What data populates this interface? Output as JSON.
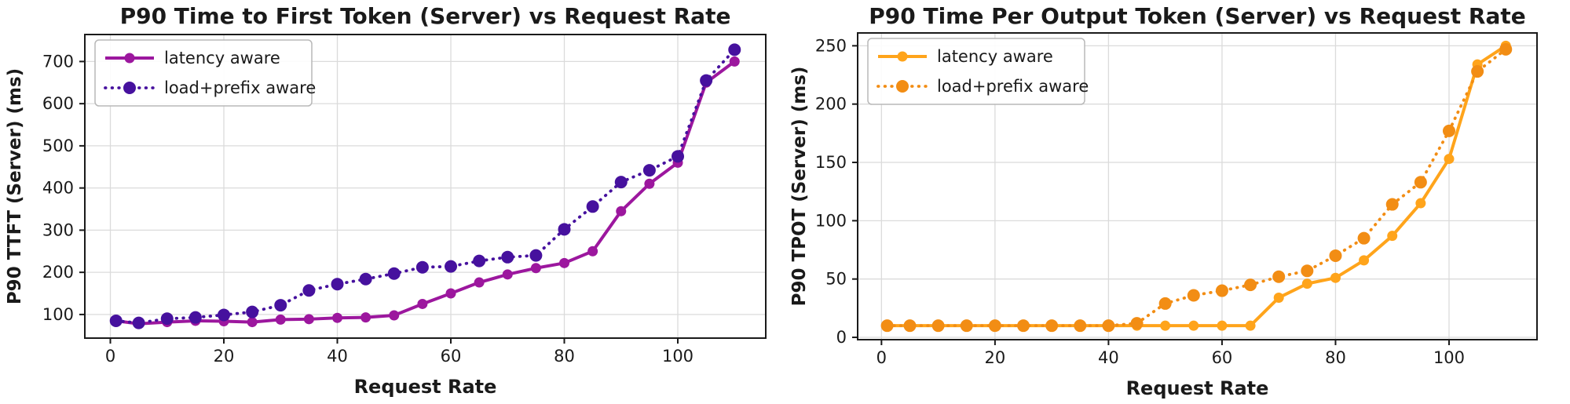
{
  "page": {
    "background": "#ffffff"
  },
  "chart_data": [
    {
      "type": "line",
      "title": "P90 Time to First Token (Server) vs Request Rate",
      "xlabel": "Request Rate",
      "ylabel": "P90 TTFT (Server) (ms)",
      "xticks": [
        0,
        20,
        40,
        60,
        80,
        100
      ],
      "yticks": [
        100,
        200,
        300,
        400,
        500,
        600,
        700
      ],
      "xlim": [
        -4.5,
        115.5
      ],
      "ylim": [
        44,
        764
      ],
      "grid": true,
      "legend_position": "upper left",
      "x": [
        1,
        5,
        10,
        15,
        20,
        25,
        30,
        35,
        40,
        45,
        50,
        55,
        60,
        65,
        70,
        75,
        80,
        85,
        90,
        95,
        100,
        105,
        110
      ],
      "series": [
        {
          "name": "latency aware",
          "style": "solid",
          "color": "#9C179E",
          "marker": "circle",
          "values": [
            85,
            78,
            82,
            85,
            84,
            82,
            88,
            89,
            92,
            93,
            98,
            125,
            150,
            176,
            195,
            210,
            222,
            250,
            345,
            410,
            460,
            650,
            700
          ]
        },
        {
          "name": "load+prefix aware",
          "style": "dotted",
          "color": "#46119E",
          "marker": "circle",
          "values": [
            85,
            80,
            90,
            93,
            99,
            106,
            122,
            157,
            172,
            184,
            197,
            212,
            214,
            227,
            236,
            240,
            302,
            356,
            414,
            442,
            475,
            655,
            728
          ]
        }
      ]
    },
    {
      "type": "line",
      "title": "P90 Time Per Output Token (Server) vs Request Rate",
      "xlabel": "Request Rate",
      "ylabel": "P90 TPOT (Server) (ms)",
      "xticks": [
        0,
        20,
        40,
        60,
        80,
        100
      ],
      "yticks": [
        0,
        50,
        100,
        150,
        200,
        250
      ],
      "xlim": [
        -4.2,
        115.5
      ],
      "ylim": [
        -2,
        261
      ],
      "grid": true,
      "legend_position": "upper left",
      "x": [
        1,
        5,
        10,
        15,
        20,
        25,
        30,
        35,
        40,
        45,
        50,
        55,
        60,
        65,
        70,
        75,
        80,
        85,
        90,
        95,
        100,
        105,
        110
      ],
      "series": [
        {
          "name": "latency aware",
          "style": "solid",
          "color": "#FFA41B",
          "marker": "circle",
          "values": [
            10,
            10,
            10,
            10,
            10,
            10,
            10,
            10,
            10,
            10,
            10,
            10,
            10,
            10,
            34,
            46,
            51,
            66,
            87,
            115,
            153,
            234,
            250
          ]
        },
        {
          "name": "load+prefix aware",
          "style": "dotted",
          "color": "#F28D14",
          "marker": "circle",
          "values": [
            10,
            10,
            10,
            10,
            10,
            10,
            10,
            10,
            10,
            12,
            29,
            36,
            40,
            45,
            52,
            57,
            70,
            85,
            114,
            133,
            177,
            228,
            247
          ]
        }
      ]
    }
  ],
  "style_colors": {
    "grid": "#DBDBDB",
    "spine": "#1a1a1a",
    "tick_label": "#1a1a1a",
    "legend_border": "#b8b8b8"
  }
}
